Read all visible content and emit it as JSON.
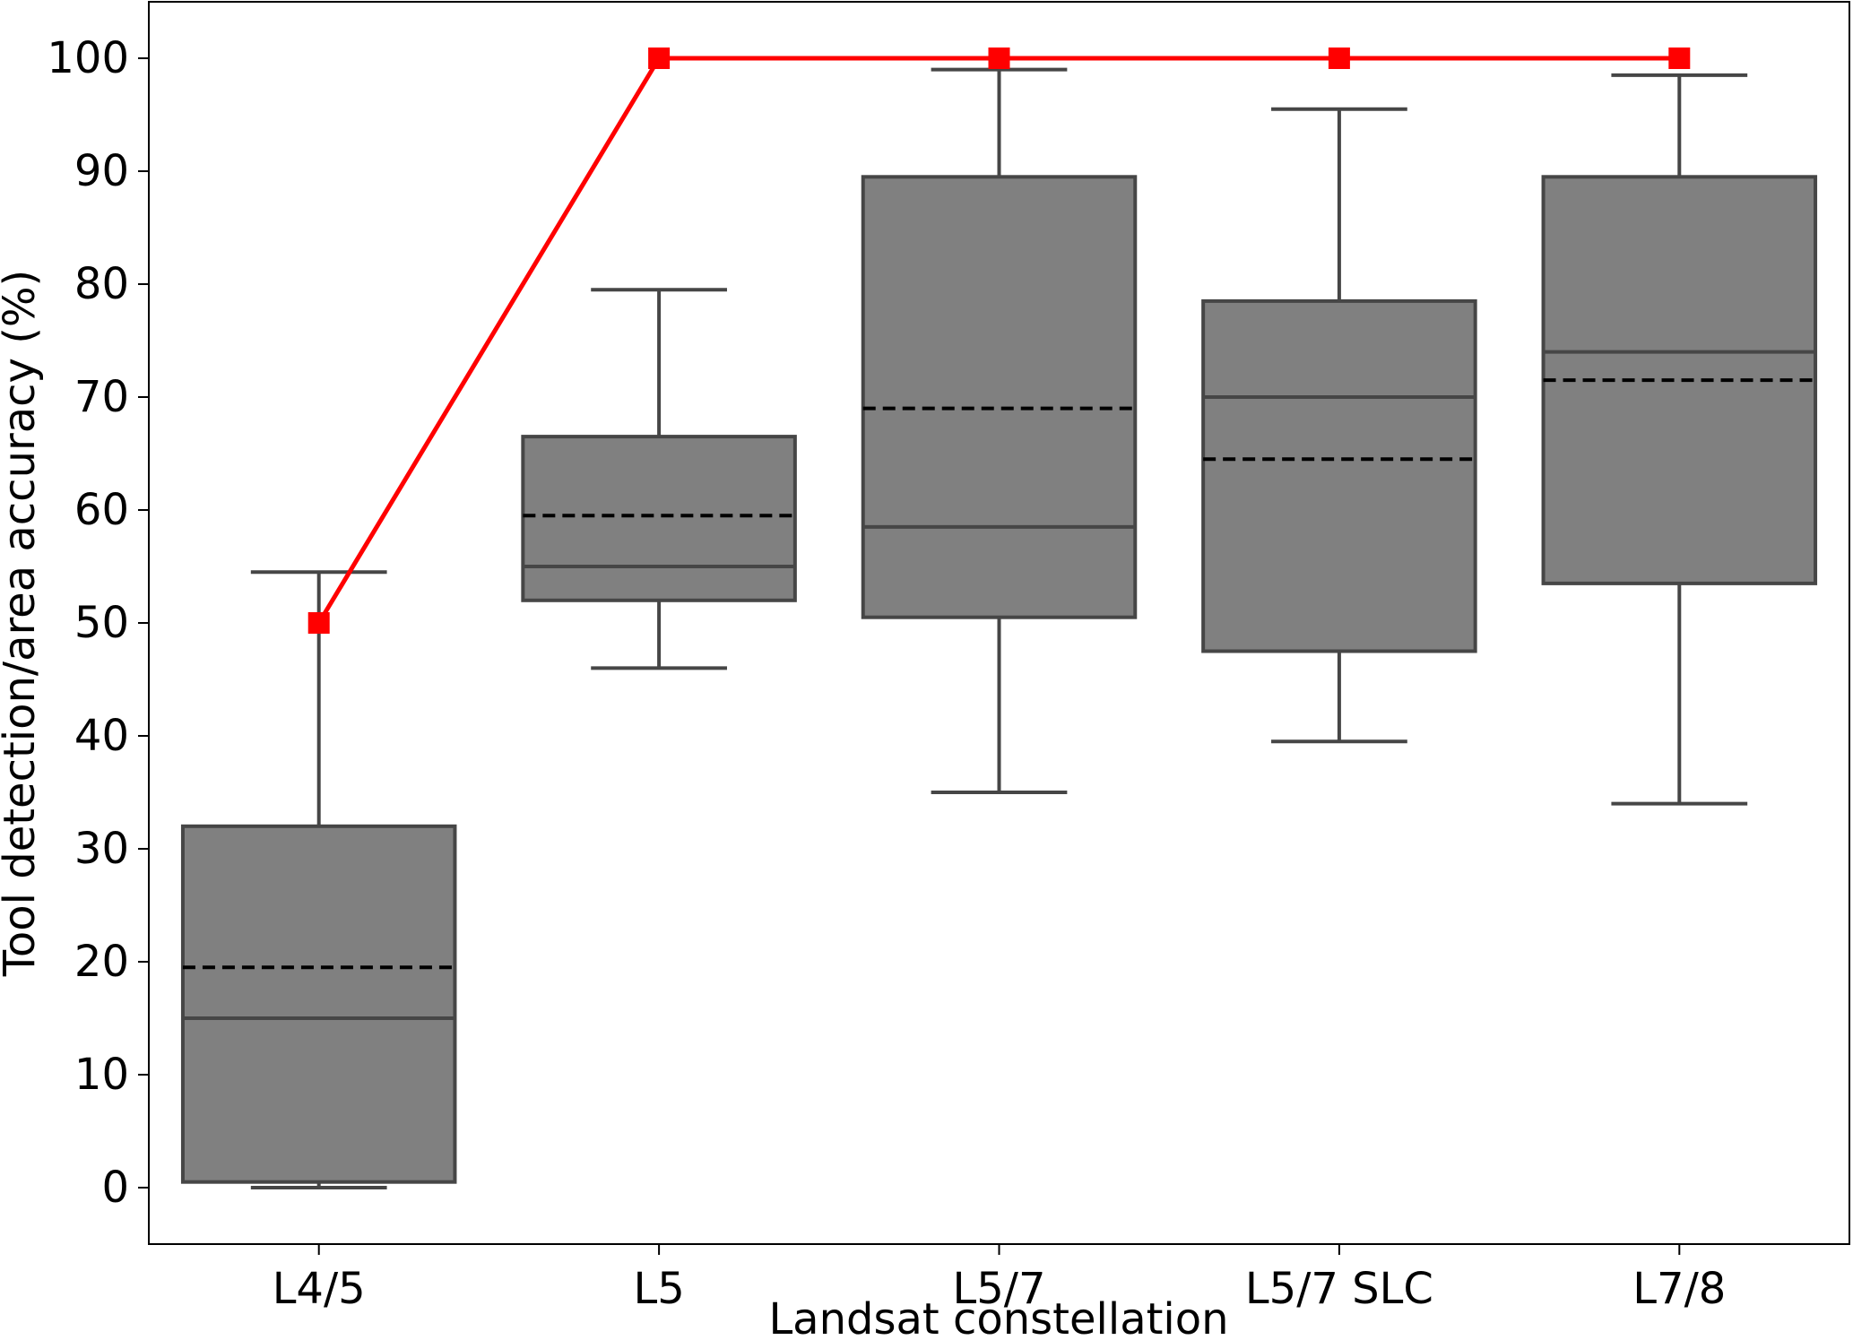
{
  "chart_data": {
    "type": "box",
    "xlabel": "Landsat constellation",
    "ylabel": "Tool detection/area accuracy (%)",
    "ylim": [
      -5,
      105
    ],
    "yticks": [
      0,
      10,
      20,
      30,
      40,
      50,
      60,
      70,
      80,
      90,
      100
    ],
    "categories": [
      "L4/5",
      "L5",
      "L5/7",
      "L5/7 SLC",
      "L7/8"
    ],
    "boxes": [
      {
        "category": "L4/5",
        "whisker_low": 0,
        "q1": 0.5,
        "median": 15,
        "mean": 19.5,
        "q3": 32,
        "whisker_high": 54.5
      },
      {
        "category": "L5",
        "whisker_low": 46,
        "q1": 52,
        "median": 55,
        "mean": 59.5,
        "q3": 66.5,
        "whisker_high": 79.5
      },
      {
        "category": "L5/7",
        "whisker_low": 35,
        "q1": 50.5,
        "median": 58.5,
        "mean": 69,
        "q3": 89.5,
        "whisker_high": 99
      },
      {
        "category": "L5/7 SLC",
        "whisker_low": 39.5,
        "q1": 47.5,
        "median": 70,
        "mean": 64.5,
        "q3": 78.5,
        "whisker_high": 95.5
      },
      {
        "category": "L7/8",
        "whisker_low": 34,
        "q1": 53.5,
        "median": 74,
        "mean": 71.5,
        "q3": 89.5,
        "whisker_high": 98.5
      }
    ],
    "overlay_line": {
      "values": [
        50,
        100,
        100,
        100,
        100
      ],
      "color": "#ff0000",
      "marker": "square"
    },
    "box_fill": "#808080",
    "box_stroke": "#464646",
    "mean_line_style": "dashed",
    "grid": false
  }
}
